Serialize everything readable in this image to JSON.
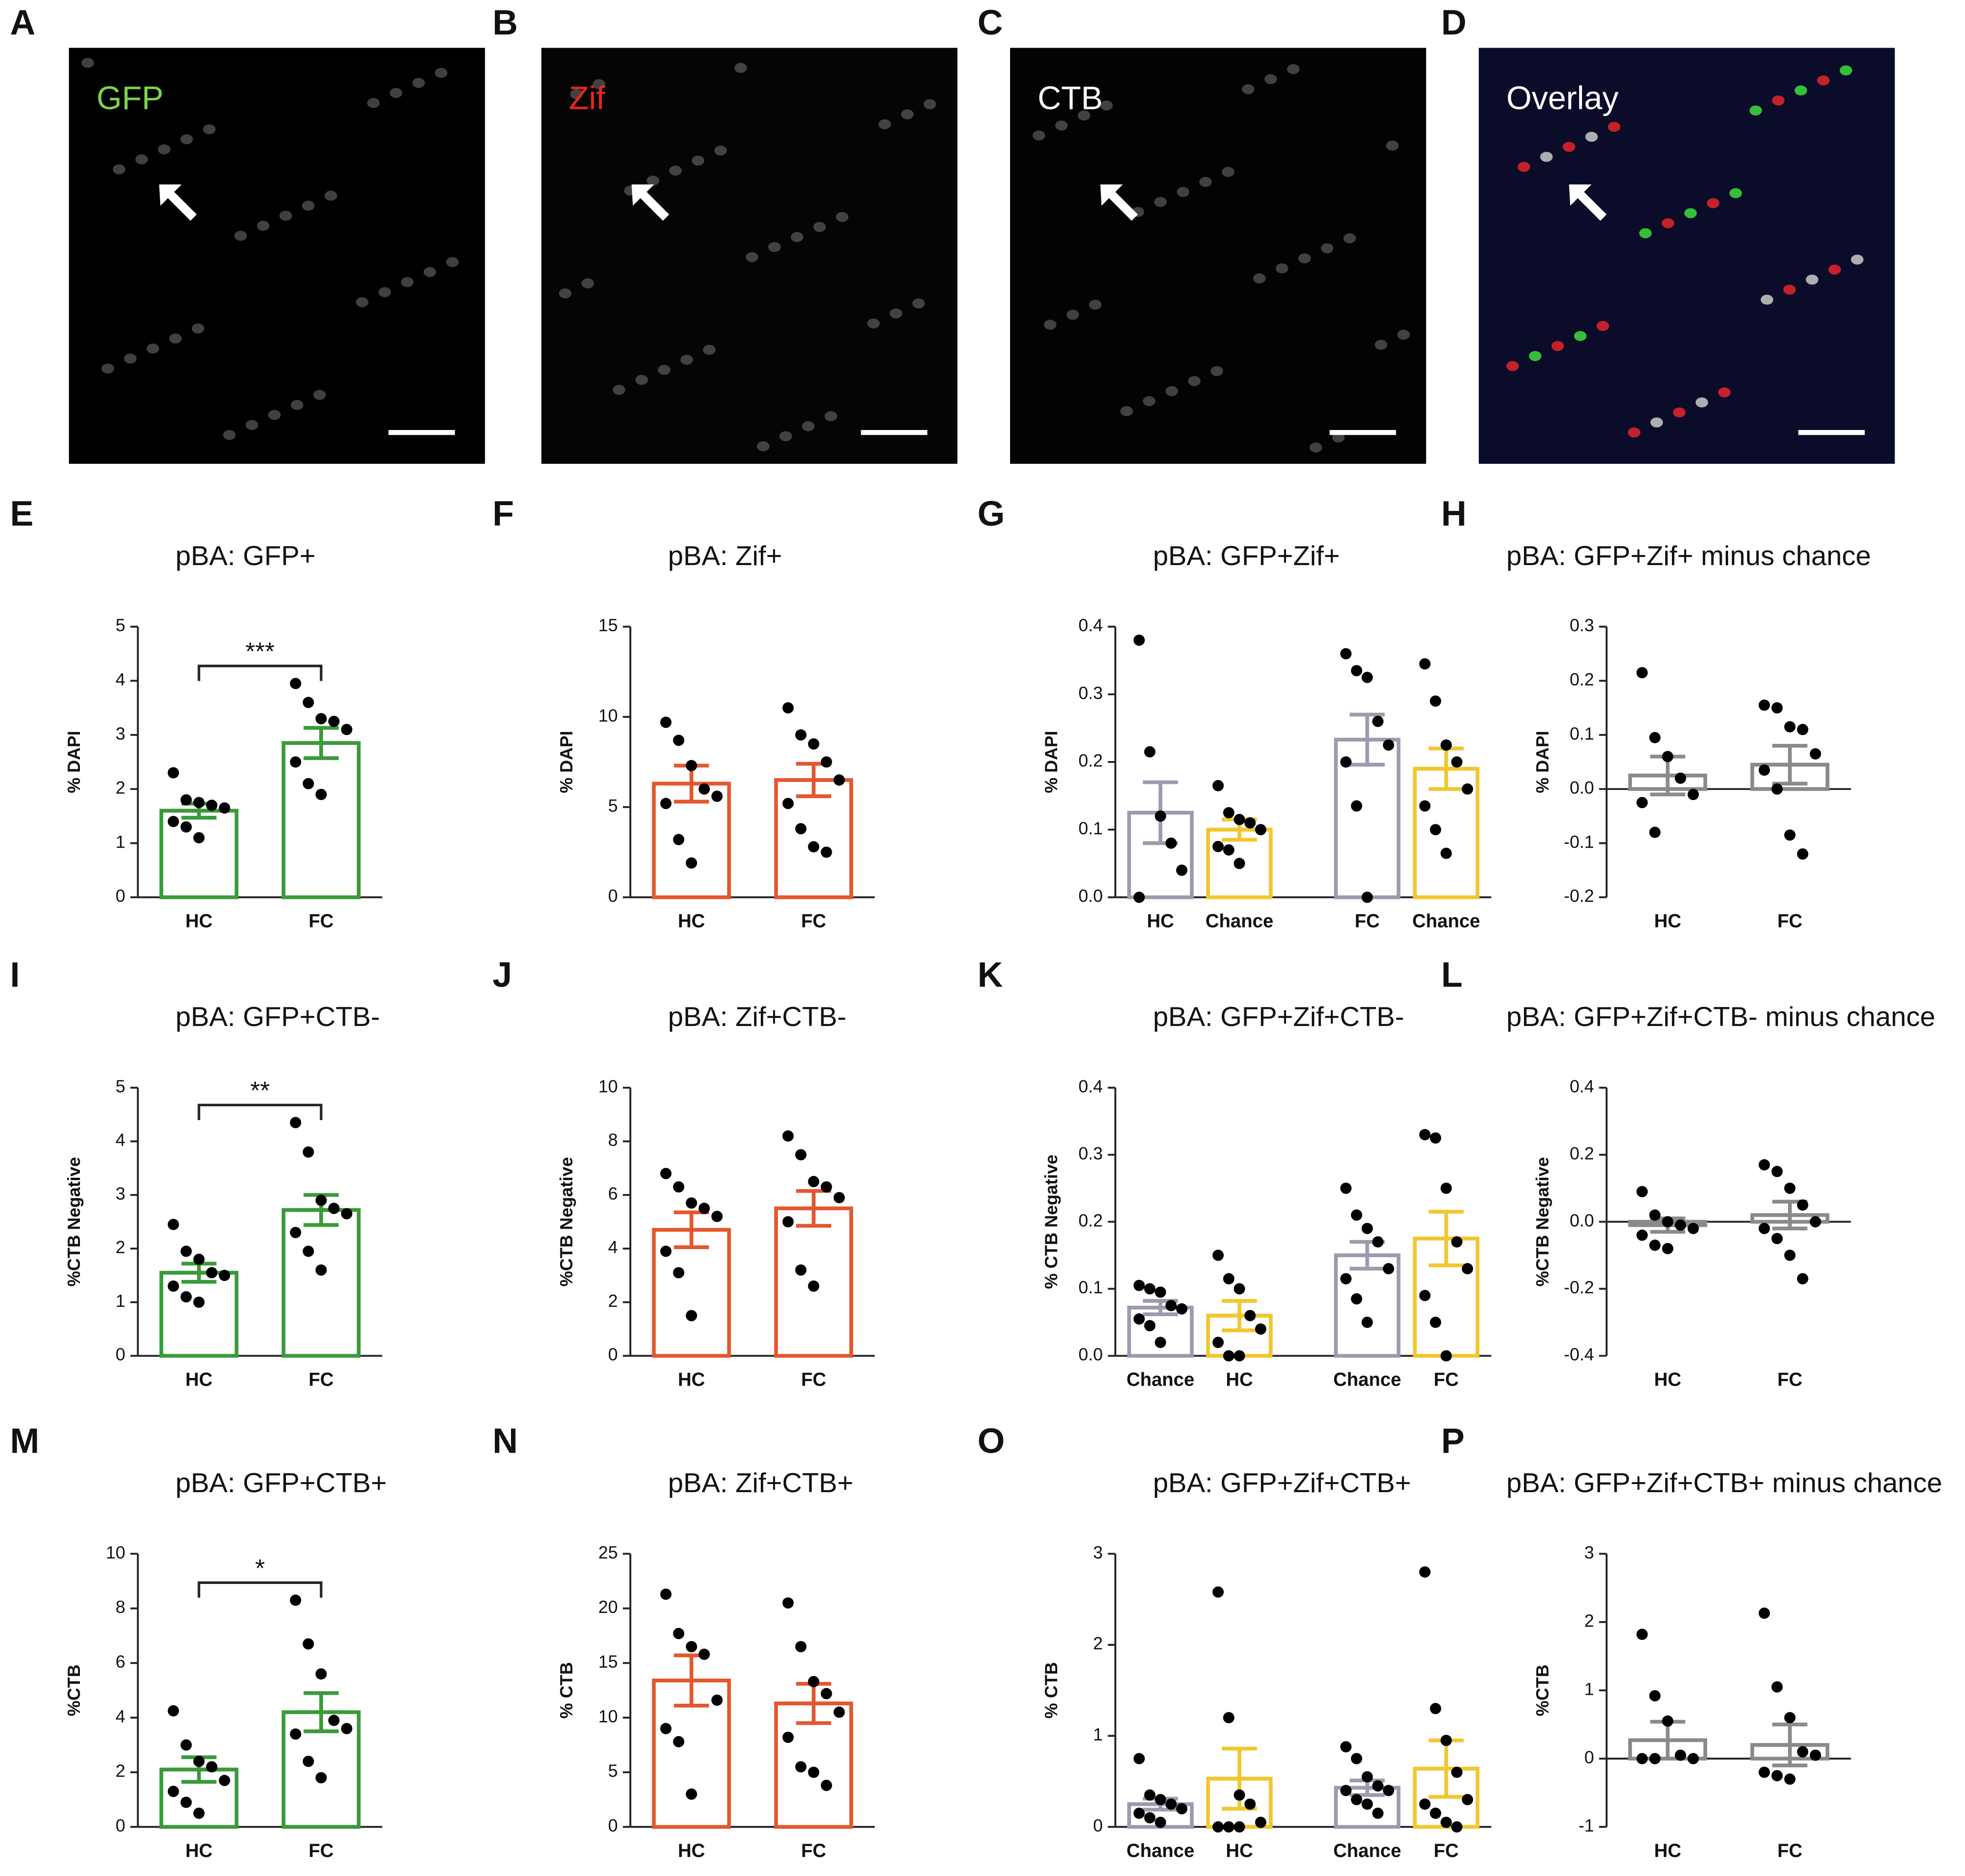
{
  "images": [
    {
      "letter": "A",
      "label": "GFP",
      "color": "#7ed34a",
      "bg": "#000000"
    },
    {
      "letter": "B",
      "label": "Zif",
      "color": "#e8261c",
      "bg": "#050505"
    },
    {
      "letter": "C",
      "label": "CTB",
      "color": "#ffffff",
      "bg": "#030303"
    },
    {
      "letter": "D",
      "label": "Overlay",
      "color": "#ffffff",
      "bg": "#0a0c2a"
    }
  ],
  "chart_data": [
    {
      "letter": "E",
      "type": "bar",
      "title": "pBA: GFP+",
      "ylabel": "% DAPI",
      "categories": [
        "HC",
        "FC"
      ],
      "colors": [
        "#3a9a3a",
        "#3a9a3a"
      ],
      "values": [
        1.6,
        2.85
      ],
      "errors": [
        0.13,
        0.28
      ],
      "points": [
        [
          2.3,
          1.8,
          1.75,
          1.7,
          1.65,
          1.4,
          1.3,
          1.1
        ],
        [
          3.95,
          3.6,
          3.3,
          3.25,
          3.1,
          2.5,
          2.1,
          1.9
        ]
      ],
      "ylim": [
        0,
        5
      ],
      "yticks": [
        0,
        1,
        2,
        3,
        4,
        5
      ],
      "significance": "***"
    },
    {
      "letter": "F",
      "type": "bar",
      "title": "pBA: Zif+",
      "ylabel": "% DAPI",
      "categories": [
        "HC",
        "FC"
      ],
      "colors": [
        "#e4572e",
        "#e4572e"
      ],
      "values": [
        6.3,
        6.5
      ],
      "errors": [
        1.0,
        0.9
      ],
      "points": [
        [
          9.7,
          8.7,
          7.3,
          6.0,
          5.6,
          5.2,
          3.2,
          1.9
        ],
        [
          10.5,
          9.0,
          8.5,
          7.5,
          6.5,
          5.2,
          3.8,
          2.8,
          2.5
        ]
      ],
      "ylim": [
        0,
        15
      ],
      "yticks": [
        0,
        5,
        10,
        15
      ]
    },
    {
      "letter": "G",
      "type": "bar",
      "title": "pBA: GFP+Zif+",
      "ylabel": "% DAPI",
      "categories": [
        "HC",
        "Chance",
        "FC",
        "Chance"
      ],
      "colors": [
        "#9e9aae",
        "#f2c62d",
        "#9e9aae",
        "#f2c62d"
      ],
      "values": [
        0.125,
        0.1,
        0.233,
        0.19
      ],
      "errors": [
        0.045,
        0.015,
        0.037,
        0.03
      ],
      "points": [
        [
          0.38,
          0.215,
          0.12,
          0.08,
          0.04,
          0.0
        ],
        [
          0.165,
          0.125,
          0.115,
          0.11,
          0.1,
          0.075,
          0.07,
          0.05
        ],
        [
          0.36,
          0.335,
          0.325,
          0.26,
          0.225,
          0.2,
          0.135,
          0.0
        ],
        [
          0.345,
          0.29,
          0.225,
          0.2,
          0.16,
          0.135,
          0.1,
          0.065
        ]
      ],
      "ylim": [
        0,
        0.4
      ],
      "yticks": [
        {
          "value": 0,
          "label": "0.0"
        },
        0.1,
        0.2,
        0.3,
        0.4
      ]
    },
    {
      "letter": "H",
      "type": "bar",
      "title": "pBA: GFP+Zif+ minus chance",
      "ylabel": "% DAPI",
      "categories": [
        "HC",
        "FC"
      ],
      "colors": [
        "#8a8a8a",
        "#8a8a8a"
      ],
      "values": [
        0.025,
        0.045
      ],
      "errors": [
        0.035,
        0.035
      ],
      "points": [
        [
          0.215,
          0.095,
          0.06,
          0.02,
          -0.01,
          -0.025,
          -0.08
        ],
        [
          0.155,
          0.15,
          0.115,
          0.11,
          0.065,
          0.035,
          0.0,
          -0.085,
          -0.12
        ]
      ],
      "ylim": [
        -0.2,
        0.3
      ],
      "yticks": [
        -0.2,
        -0.1,
        {
          "value": 0,
          "label": "0.0"
        },
        0.1,
        0.2,
        0.3
      ]
    },
    {
      "letter": "I",
      "type": "bar",
      "title": "pBA: GFP+CTB-",
      "ylabel": "%CTB Negative",
      "categories": [
        "HC",
        "FC"
      ],
      "colors": [
        "#3a9a3a",
        "#3a9a3a"
      ],
      "values": [
        1.55,
        2.72
      ],
      "errors": [
        0.17,
        0.28
      ],
      "points": [
        [
          2.45,
          1.95,
          1.8,
          1.55,
          1.5,
          1.3,
          1.1,
          1.0
        ],
        [
          4.35,
          3.8,
          2.9,
          2.75,
          2.65,
          2.3,
          1.95,
          1.6
        ]
      ],
      "ylim": [
        0,
        5
      ],
      "yticks": [
        0,
        1,
        2,
        3,
        4,
        5
      ],
      "significance": "**"
    },
    {
      "letter": "J",
      "type": "bar",
      "title": "pBA: Zif+CTB-",
      "ylabel": "%CTB Negative",
      "categories": [
        "HC",
        "FC"
      ],
      "colors": [
        "#e4572e",
        "#e4572e"
      ],
      "values": [
        4.7,
        5.5
      ],
      "errors": [
        0.65,
        0.65
      ],
      "points": [
        [
          6.8,
          6.3,
          5.7,
          5.5,
          5.2,
          3.9,
          3.1,
          1.5
        ],
        [
          8.2,
          7.5,
          6.5,
          6.3,
          5.9,
          5.0,
          3.2,
          2.6
        ]
      ],
      "ylim": [
        0,
        10
      ],
      "yticks": [
        0,
        2,
        4,
        6,
        8,
        10
      ]
    },
    {
      "letter": "K",
      "type": "bar",
      "title": "pBA: GFP+Zif+CTB-",
      "ylabel": "% CTB Negative",
      "categories": [
        "Chance",
        "HC",
        "Chance",
        "FC"
      ],
      "colors": [
        "#9e9aae",
        "#f2c62d",
        "#9e9aae",
        "#f2c62d"
      ],
      "values": [
        0.072,
        0.06,
        0.15,
        0.175
      ],
      "errors": [
        0.01,
        0.022,
        0.02,
        0.04
      ],
      "points": [
        [
          0.105,
          0.1,
          0.095,
          0.075,
          0.07,
          0.055,
          0.045,
          0.02
        ],
        [
          0.15,
          0.115,
          0.1,
          0.06,
          0.04,
          0.02,
          0.0,
          0.0
        ],
        [
          0.25,
          0.21,
          0.19,
          0.17,
          0.13,
          0.115,
          0.085,
          0.05
        ],
        [
          0.33,
          0.325,
          0.25,
          0.17,
          0.13,
          0.09,
          0.05,
          0.0
        ]
      ],
      "ylim": [
        0,
        0.4
      ],
      "yticks": [
        {
          "value": 0,
          "label": "0.0"
        },
        0.1,
        0.2,
        0.3,
        0.4
      ]
    },
    {
      "letter": "L",
      "type": "bar",
      "title": "pBA: GFP+Zif+CTB- minus chance",
      "ylabel": "%CTB Negative",
      "categories": [
        "HC",
        "FC"
      ],
      "colors": [
        "#8a8a8a",
        "#8a8a8a"
      ],
      "values": [
        -0.01,
        0.02
      ],
      "errors": [
        0.02,
        0.04
      ],
      "points": [
        [
          0.09,
          0.02,
          0.0,
          -0.01,
          -0.02,
          -0.04,
          -0.07,
          -0.08
        ],
        [
          0.17,
          0.15,
          0.1,
          0.05,
          0.0,
          -0.02,
          -0.05,
          -0.1,
          -0.17
        ]
      ],
      "ylim": [
        -0.4,
        0.4
      ],
      "yticks": [
        -0.4,
        -0.2,
        {
          "value": 0,
          "label": "0.0"
        },
        0.2,
        0.4
      ]
    },
    {
      "letter": "M",
      "type": "bar",
      "title": "pBA: GFP+CTB+",
      "ylabel": "%CTB",
      "categories": [
        "HC",
        "FC"
      ],
      "colors": [
        "#3a9a3a",
        "#3a9a3a"
      ],
      "values": [
        2.1,
        4.2
      ],
      "errors": [
        0.45,
        0.7
      ],
      "points": [
        [
          4.25,
          3.0,
          2.4,
          2.2,
          1.7,
          1.3,
          0.9,
          0.5
        ],
        [
          8.3,
          6.7,
          5.6,
          3.9,
          3.6,
          3.4,
          2.4,
          1.8
        ]
      ],
      "ylim": [
        0,
        10
      ],
      "yticks": [
        0,
        2,
        4,
        6,
        8,
        10
      ],
      "significance": "*"
    },
    {
      "letter": "N",
      "type": "bar",
      "title": "pBA: Zif+CTB+",
      "ylabel": "% CTB",
      "categories": [
        "HC",
        "FC"
      ],
      "colors": [
        "#e4572e",
        "#e4572e"
      ],
      "values": [
        13.4,
        11.3
      ],
      "errors": [
        2.3,
        1.8
      ],
      "points": [
        [
          21.3,
          17.7,
          16.5,
          15.8,
          11.6,
          9.0,
          7.8,
          3.0
        ],
        [
          20.5,
          16.5,
          13.3,
          12.2,
          10.5,
          8.2,
          5.5,
          5.0,
          3.8
        ]
      ],
      "ylim": [
        0,
        25
      ],
      "yticks": [
        0,
        5,
        10,
        15,
        20,
        25
      ]
    },
    {
      "letter": "O",
      "type": "bar",
      "title": "pBA: GFP+Zif+CTB+",
      "ylabel": "% CTB",
      "categories": [
        "Chance",
        "HC",
        "Chance",
        "FC"
      ],
      "colors": [
        "#9e9aae",
        "#f2c62d",
        "#9e9aae",
        "#f2c62d"
      ],
      "values": [
        0.25,
        0.53,
        0.43,
        0.64
      ],
      "errors": [
        0.06,
        0.33,
        0.08,
        0.31
      ],
      "points": [
        [
          0.75,
          0.35,
          0.3,
          0.25,
          0.2,
          0.15,
          0.1,
          0.05
        ],
        [
          2.58,
          1.2,
          0.35,
          0.25,
          0.05,
          0.0,
          0.0,
          0.0
        ],
        [
          0.88,
          0.75,
          0.55,
          0.45,
          0.4,
          0.4,
          0.3,
          0.25,
          0.15
        ],
        [
          2.8,
          1.3,
          0.95,
          0.6,
          0.3,
          0.25,
          0.15,
          0.05,
          0.0
        ]
      ],
      "ylim": [
        0,
        3
      ],
      "yticks": [
        0,
        1,
        2,
        3
      ]
    },
    {
      "letter": "P",
      "type": "bar",
      "title": "pBA: GFP+Zif+CTB+ minus chance",
      "ylabel": "%CTB",
      "categories": [
        "HC",
        "FC"
      ],
      "colors": [
        "#8a8a8a",
        "#8a8a8a"
      ],
      "values": [
        0.27,
        0.2
      ],
      "errors": [
        0.27,
        0.3
      ],
      "points": [
        [
          1.82,
          0.92,
          0.55,
          0.05,
          0.0,
          0.0,
          0.0
        ],
        [
          2.13,
          1.05,
          0.6,
          0.1,
          0.05,
          -0.2,
          -0.25,
          -0.3
        ]
      ],
      "ylim": [
        -1,
        3
      ],
      "yticks": [
        -1,
        0,
        1,
        2,
        3
      ]
    }
  ]
}
